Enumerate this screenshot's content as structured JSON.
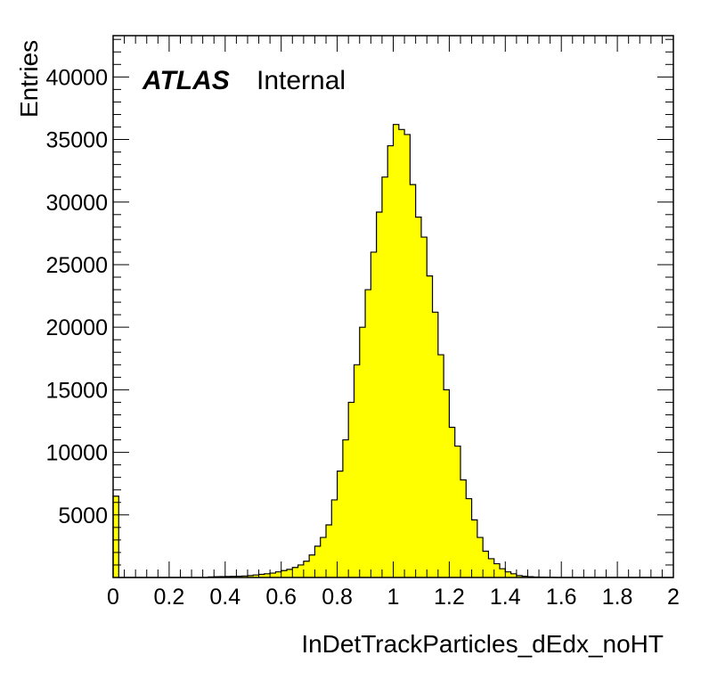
{
  "chart_data": {
    "type": "bar",
    "xlabel": "InDetTrackParticles_dEdx_noHT",
    "ylabel": "Entries",
    "xlim": [
      0,
      2
    ],
    "ylim": [
      0,
      43300
    ],
    "bin_width": 0.02,
    "fill_color": "#ffff00",
    "line_color": "#000000",
    "x_ticks": [
      "0",
      "0.2",
      "0.4",
      "0.6",
      "0.8",
      "1",
      "1.2",
      "1.4",
      "1.6",
      "1.8",
      "2"
    ],
    "y_ticks": [
      "5000",
      "10000",
      "15000",
      "20000",
      "25000",
      "30000",
      "35000",
      "40000"
    ],
    "bins_low_edge": [
      0.0,
      0.02,
      0.04,
      0.06,
      0.08,
      0.1,
      0.12,
      0.14,
      0.16,
      0.18,
      0.2,
      0.22,
      0.24,
      0.26,
      0.28,
      0.3,
      0.32,
      0.34,
      0.36,
      0.38,
      0.4,
      0.42,
      0.44,
      0.46,
      0.48,
      0.5,
      0.52,
      0.54,
      0.56,
      0.58,
      0.6,
      0.62,
      0.64,
      0.66,
      0.68,
      0.7,
      0.72,
      0.74,
      0.76,
      0.78,
      0.8,
      0.82,
      0.84,
      0.86,
      0.88,
      0.9,
      0.92,
      0.94,
      0.96,
      0.98,
      1.0,
      1.02,
      1.04,
      1.06,
      1.08,
      1.1,
      1.12,
      1.14,
      1.16,
      1.18,
      1.2,
      1.22,
      1.24,
      1.26,
      1.28,
      1.3,
      1.32,
      1.34,
      1.36,
      1.38,
      1.4,
      1.42,
      1.44,
      1.46,
      1.48,
      1.5,
      1.52,
      1.54,
      1.56,
      1.58,
      1.6,
      1.62,
      1.64,
      1.66,
      1.68,
      1.7,
      1.72,
      1.74,
      1.76,
      1.78,
      1.8,
      1.82,
      1.84,
      1.86,
      1.88,
      1.9,
      1.92,
      1.94,
      1.96,
      1.98
    ],
    "values": [
      6500,
      0,
      0,
      0,
      0,
      0,
      0,
      0,
      0,
      0,
      0,
      0,
      0,
      0,
      0,
      0,
      0,
      50,
      60,
      70,
      80,
      90,
      100,
      120,
      150,
      200,
      250,
      300,
      350,
      450,
      550,
      650,
      800,
      1000,
      1300,
      1800,
      2500,
      3200,
      4200,
      6200,
      8500,
      11000,
      14000,
      17000,
      20000,
      23000,
      26000,
      29200,
      32000,
      34500,
      36200,
      35800,
      35400,
      31400,
      28800,
      27200,
      24100,
      21200,
      17800,
      15000,
      12000,
      10500,
      7800,
      6300,
      4600,
      3200,
      2100,
      1500,
      1100,
      700,
      450,
      300,
      150,
      100,
      60,
      40,
      30,
      20,
      10,
      0,
      0,
      0,
      0,
      0,
      0,
      0,
      0,
      0,
      0,
      0,
      0,
      0,
      0,
      0,
      0,
      0,
      0,
      0,
      0,
      0
    ],
    "annotations": [
      {
        "bold_italic": "ATLAS",
        "text": "Internal"
      }
    ]
  }
}
